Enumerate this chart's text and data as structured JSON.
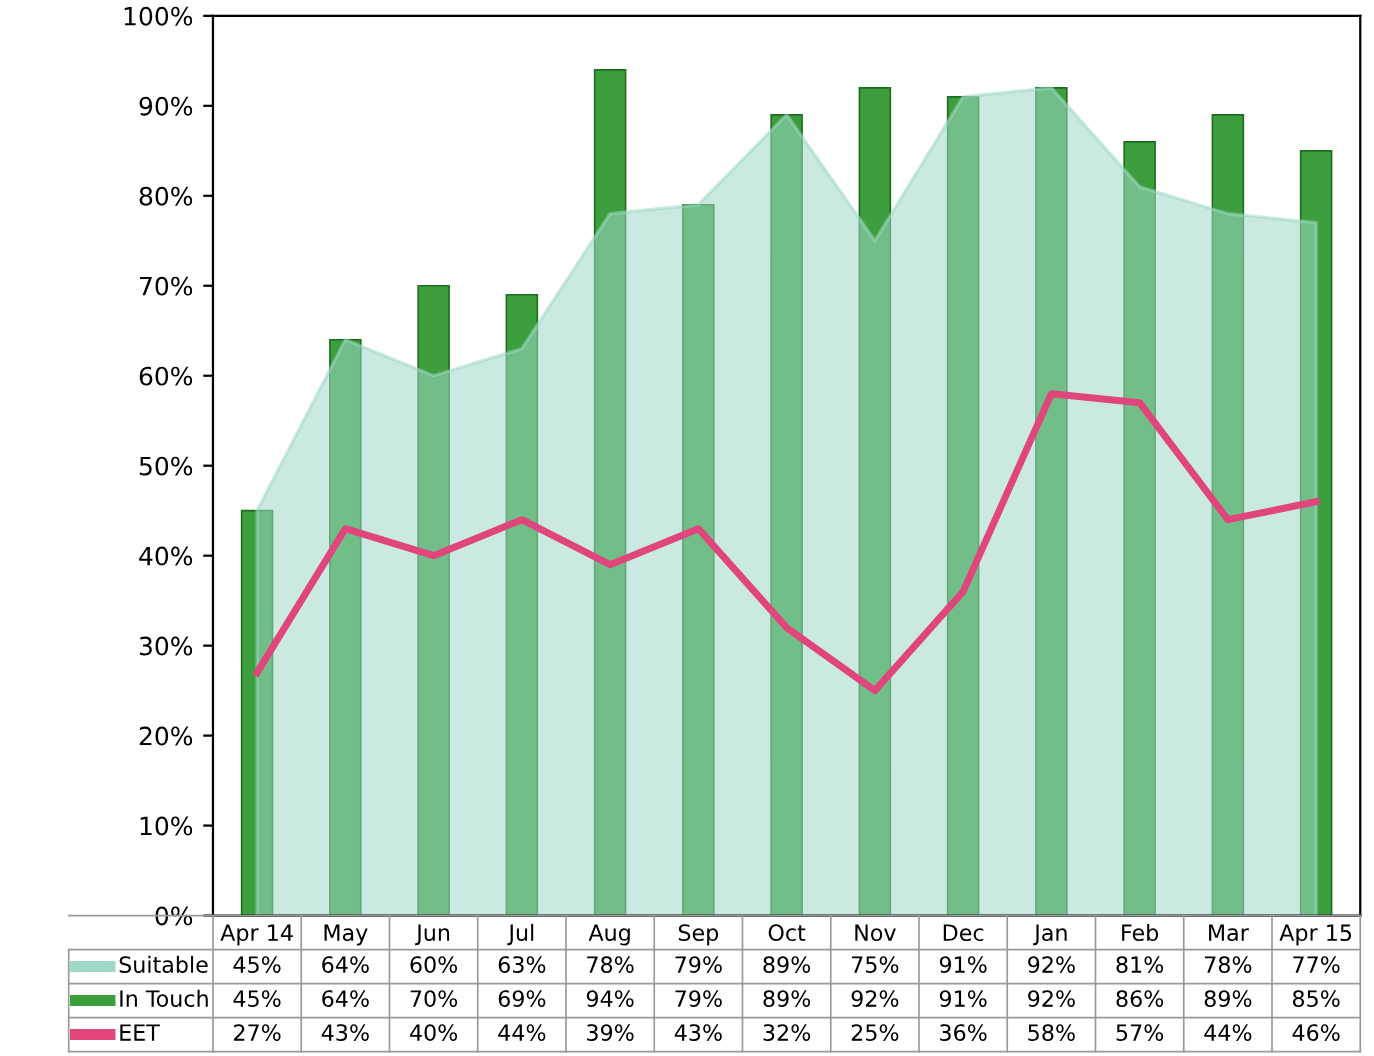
{
  "chart_data": {
    "type": "bar",
    "categories": [
      "Apr 14",
      "May",
      "Jun",
      "Jul",
      "Aug",
      "Sep",
      "Oct",
      "Nov",
      "Dec",
      "Jan",
      "Feb",
      "Mar",
      "Apr 15"
    ],
    "series": [
      {
        "name": "Suitable",
        "type": "area",
        "color": "#9fd9c9",
        "values": [
          45,
          64,
          60,
          63,
          78,
          79,
          89,
          75,
          91,
          92,
          81,
          78,
          77
        ],
        "value_labels": [
          "45%",
          "64%",
          "60%",
          "63%",
          "78%",
          "79%",
          "89%",
          "75%",
          "91%",
          "92%",
          "81%",
          "78%",
          "77%"
        ]
      },
      {
        "name": "In Touch",
        "color": "#3d9e3d",
        "values": [
          45,
          64,
          70,
          69,
          94,
          79,
          89,
          92,
          91,
          92,
          86,
          89,
          85
        ],
        "value_labels": [
          "45%",
          "64%",
          "70%",
          "69%",
          "94%",
          "79%",
          "89%",
          "92%",
          "91%",
          "92%",
          "86%",
          "89%",
          "85%"
        ]
      },
      {
        "name": "EET",
        "type": "line",
        "color": "#e0457b",
        "values": [
          27,
          43,
          40,
          44,
          39,
          43,
          32,
          25,
          36,
          58,
          57,
          44,
          46
        ],
        "value_labels": [
          "27%",
          "43%",
          "40%",
          "44%",
          "39%",
          "43%",
          "32%",
          "25%",
          "36%",
          "58%",
          "57%",
          "44%",
          "46%"
        ]
      }
    ],
    "ylim": [
      0,
      100
    ],
    "yticks": [
      {
        "value": 0,
        "label": "0%"
      },
      {
        "value": 10,
        "label": "10%"
      },
      {
        "value": 20,
        "label": "20%"
      },
      {
        "value": 30,
        "label": "30%"
      },
      {
        "value": 40,
        "label": "40%"
      },
      {
        "value": 50,
        "label": "50%"
      },
      {
        "value": 60,
        "label": "60%"
      },
      {
        "value": 70,
        "label": "70%"
      },
      {
        "value": 80,
        "label": "80%"
      },
      {
        "value": 90,
        "label": "90%"
      },
      {
        "value": 100,
        "label": "100%"
      }
    ],
    "legend": "bottom",
    "grid": false
  }
}
